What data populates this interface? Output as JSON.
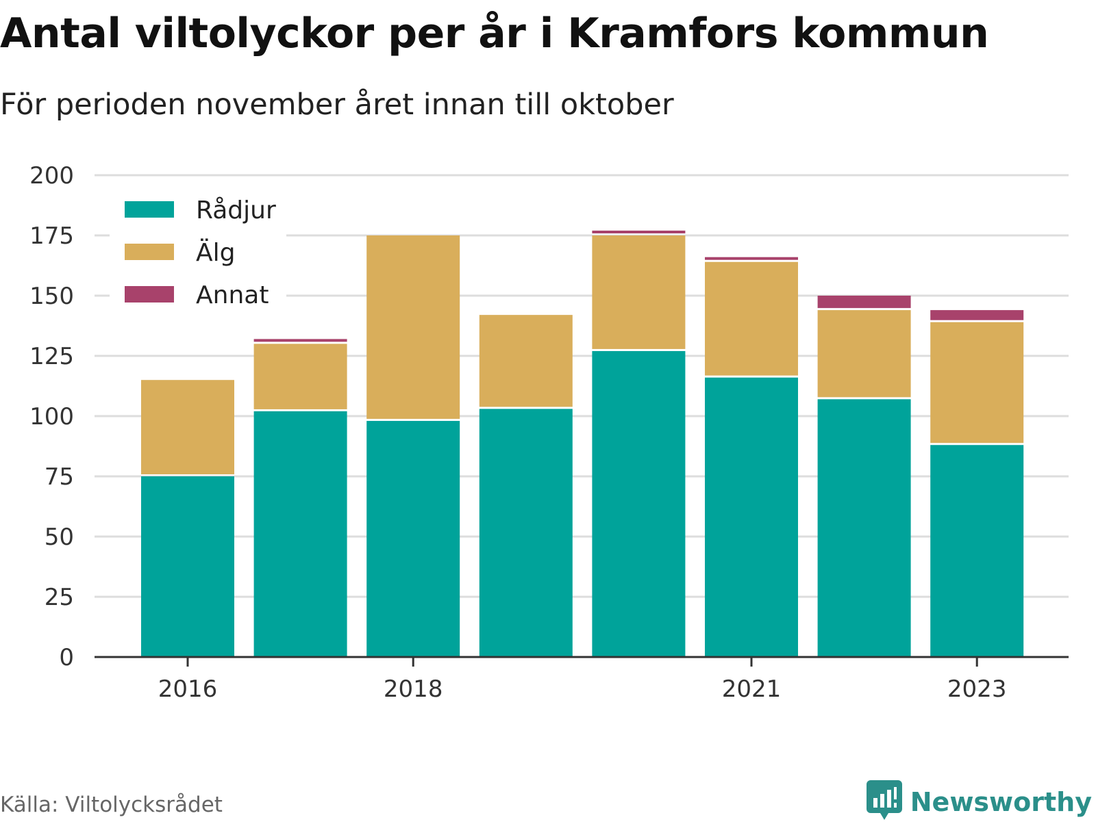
{
  "header": {
    "title": "Antal viltolyckor per år i Kramfors kommun",
    "subtitle": "För perioden november året innan till oktober"
  },
  "footer": {
    "source": "Källa: Viltolycksrådet",
    "brand": "Newsworthy",
    "brand_icon": "bar-chart-speech-bubble-icon",
    "brand_color": "#2b8f8a"
  },
  "chart_data": {
    "type": "bar",
    "stacked": true,
    "categories": [
      "2016",
      "2017",
      "2018",
      "2019",
      "2020",
      "2021",
      "2022",
      "2023"
    ],
    "x_tick_labels": [
      "2016",
      "2018",
      "2021",
      "2023"
    ],
    "series": [
      {
        "name": "Rådjur",
        "color": "#00a39a",
        "values": [
          75,
          102,
          98,
          103,
          127,
          116,
          107,
          88
        ]
      },
      {
        "name": "Älg",
        "color": "#d9ae5b",
        "values": [
          40,
          28,
          77,
          39,
          48,
          48,
          37,
          51
        ]
      },
      {
        "name": "Annat",
        "color": "#a8426b",
        "values": [
          0,
          2,
          0,
          0,
          2,
          2,
          6,
          5
        ]
      }
    ],
    "ylim": [
      0,
      200
    ],
    "y_ticks": [
      0,
      25,
      50,
      75,
      100,
      125,
      150,
      175,
      200
    ],
    "grid": true,
    "legend_position": "top-left"
  }
}
